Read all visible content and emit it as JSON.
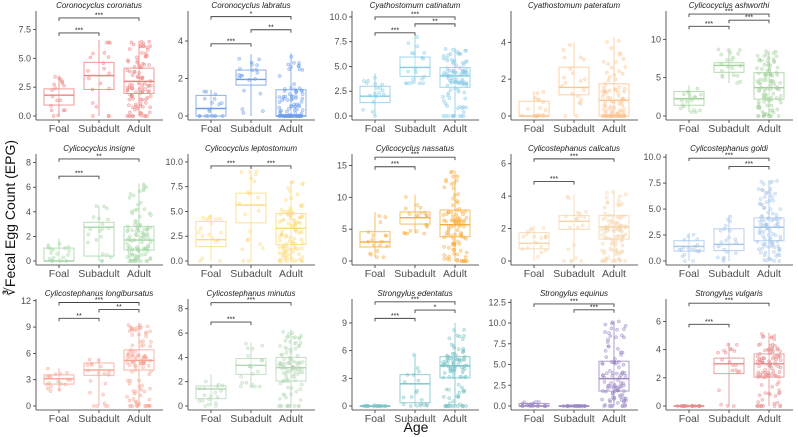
{
  "chart_data": {
    "type": "boxplot",
    "xlabel": "Age",
    "ylabel": "∛Fecal Egg Count (EPG)",
    "categories": [
      "Foal",
      "Subadult",
      "Adult"
    ],
    "stat_fields": [
      "whisker_low",
      "q1",
      "median",
      "q3",
      "whisker_high"
    ],
    "panels": [
      {
        "title": "Coronocyclus coronatus",
        "color": "#f08080",
        "ymax": 9.1,
        "ticks": [
          "0.0",
          "2.5",
          "5.0",
          "7.5"
        ],
        "stats": [
          [
            0,
            0.95,
            1.8,
            2.35,
            3.5
          ],
          [
            0,
            2.3,
            3.5,
            4.65,
            6.6
          ],
          [
            0,
            1.95,
            3.0,
            4.15,
            6.5
          ]
        ],
        "brackets": [
          {
            "from": 0,
            "to": 1,
            "y": 7.2,
            "label": "***"
          },
          {
            "from": 0,
            "to": 2,
            "y": 8.5,
            "label": "***"
          }
        ]
      },
      {
        "title": "Coronocyclus labratus",
        "color": "#6c9de8",
        "ymax": 5.6,
        "ticks": [
          "0",
          "2",
          "4"
        ],
        "stats": [
          [
            0,
            0,
            0.4,
            1.1,
            1.4
          ],
          [
            0,
            1.65,
            1.95,
            2.45,
            3.3
          ],
          [
            0,
            0,
            0,
            1.4,
            3.35
          ]
        ],
        "brackets": [
          {
            "from": 0,
            "to": 1,
            "y": 3.85,
            "label": "***"
          },
          {
            "from": 1,
            "to": 2,
            "y": 4.6,
            "label": "**"
          },
          {
            "from": 0,
            "to": 2,
            "y": 5.3,
            "label": "*"
          }
        ]
      },
      {
        "title": "Cyathostomum catinatum",
        "color": "#86cbe6",
        "ymax": 10.6,
        "ticks": [
          "0.0",
          "2.5",
          "5.0",
          "7.5",
          "10.0"
        ],
        "stats": [
          [
            0,
            1.35,
            2.0,
            3.0,
            4.3
          ],
          [
            3.3,
            4.0,
            4.9,
            5.95,
            8.0
          ],
          [
            0,
            2.9,
            4.05,
            4.9,
            6.9
          ]
        ],
        "brackets": [
          {
            "from": 0,
            "to": 1,
            "y": 8.4,
            "label": "***"
          },
          {
            "from": 1,
            "to": 2,
            "y": 9.3,
            "label": "**"
          },
          {
            "from": 0,
            "to": 2,
            "y": 10.0,
            "label": "***"
          }
        ]
      },
      {
        "title": "Cyathostomum pateratum",
        "color": "#fdc490",
        "ymax": 5.7,
        "ticks": [
          "0",
          "2",
          "4"
        ],
        "stats": [
          [
            0,
            0,
            0,
            0.8,
            1.35
          ],
          [
            0,
            1.15,
            1.55,
            2.65,
            4.0
          ],
          [
            0,
            0,
            0.85,
            1.75,
            4.25
          ]
        ],
        "brackets": []
      },
      {
        "title": "Cylicocyclus ashworthi",
        "color": "#a3d19c",
        "ymax": 13.7,
        "ticks": [
          "0",
          "5",
          "10"
        ],
        "stats": [
          [
            0.5,
            1.4,
            2.25,
            3.2,
            4.0
          ],
          [
            4.3,
            5.7,
            6.6,
            6.95,
            8.7
          ],
          [
            0,
            2.2,
            3.7,
            5.65,
            8.5
          ]
        ],
        "brackets": [
          {
            "from": 0,
            "to": 1,
            "y": 11.7,
            "label": "***"
          },
          {
            "from": 1,
            "to": 2,
            "y": 12.5,
            "label": "***"
          },
          {
            "from": 0,
            "to": 2,
            "y": 13.3,
            "label": "***"
          }
        ]
      },
      {
        "title": "Cylicocyclus insigne",
        "color": "#a5d6a5",
        "ymax": 8.7,
        "ticks": [
          "0",
          "2",
          "4",
          "6",
          "8"
        ],
        "stats": [
          [
            0,
            0,
            0,
            1.05,
            1.8
          ],
          [
            0,
            0.4,
            2.75,
            3.15,
            4.5
          ],
          [
            0,
            0.9,
            1.7,
            2.8,
            6.3
          ]
        ],
        "brackets": [
          {
            "from": 0,
            "to": 1,
            "y": 6.9,
            "label": "***"
          },
          {
            "from": 0,
            "to": 2,
            "y": 8.3,
            "label": "**"
          }
        ]
      },
      {
        "title": "Cylicocyclus leptostomum",
        "color": "#fbd97a",
        "ymax": 10.8,
        "ticks": [
          "0.0",
          "2.5",
          "5.0",
          "7.5",
          "10.0"
        ],
        "stats": [
          [
            0,
            1.45,
            2.15,
            4.0,
            4.7
          ],
          [
            0,
            3.85,
            5.65,
            6.85,
            9.1
          ],
          [
            0,
            1.65,
            3.3,
            4.8,
            8.1
          ]
        ],
        "brackets": [
          {
            "from": 0,
            "to": 1,
            "y": 9.6,
            "label": "***"
          },
          {
            "from": 1,
            "to": 2,
            "y": 9.6,
            "label": "***"
          }
        ]
      },
      {
        "title": "Cylicocyclus nassatus",
        "color": "#f5ad3c",
        "ymax": 16.8,
        "ticks": [
          "0",
          "5",
          "10",
          "15"
        ],
        "stats": [
          [
            0.6,
            2.2,
            3.0,
            4.6,
            7.7
          ],
          [
            4.3,
            5.8,
            6.8,
            7.7,
            10.4
          ],
          [
            0,
            3.8,
            5.7,
            8.0,
            14.2
          ]
        ],
        "brackets": [
          {
            "from": 0,
            "to": 1,
            "y": 14.8,
            "label": "***"
          },
          {
            "from": 0,
            "to": 2,
            "y": 16.3,
            "label": "***"
          }
        ]
      },
      {
        "title": "Cylicostephanus calicatus",
        "color": "#f6d3a8",
        "ymax": 6.6,
        "ticks": [
          "0",
          "2",
          "4",
          "6"
        ],
        "stats": [
          [
            0,
            0.75,
            1.1,
            1.75,
            2.2
          ],
          [
            0,
            1.95,
            2.45,
            2.8,
            4.1
          ],
          [
            0,
            1.35,
            2.1,
            2.8,
            4.3
          ]
        ],
        "brackets": [
          {
            "from": 0,
            "to": 1,
            "y": 4.9,
            "label": "***"
          },
          {
            "from": 0,
            "to": 2,
            "y": 6.3,
            "label": "***"
          }
        ]
      },
      {
        "title": "Cylicostephanus goldi",
        "color": "#a6c6ea",
        "ymax": 10.3,
        "ticks": [
          "0.0",
          "2.5",
          "5.0",
          "7.5",
          "10.0"
        ],
        "stats": [
          [
            0,
            0.95,
            1.4,
            1.95,
            2.7
          ],
          [
            0,
            1.0,
            1.6,
            3.1,
            4.4
          ],
          [
            0,
            1.95,
            3.25,
            4.15,
            7.8
          ]
        ],
        "brackets": [
          {
            "from": 1,
            "to": 2,
            "y": 9.1,
            "label": "***"
          },
          {
            "from": 0,
            "to": 2,
            "y": 9.9,
            "label": "***"
          }
        ]
      },
      {
        "title": "Cylicostephanus longibursatus",
        "color": "#f7a392",
        "ymax": 12.2,
        "ticks": [
          "0",
          "3",
          "6",
          "9",
          "12"
        ],
        "stats": [
          [
            1.7,
            2.5,
            3.1,
            3.55,
            4.3
          ],
          [
            0,
            3.5,
            4.1,
            4.9,
            5.5
          ],
          [
            0,
            4.1,
            5.2,
            6.4,
            9.5
          ]
        ],
        "brackets": [
          {
            "from": 0,
            "to": 1,
            "y": 10.0,
            "label": "**"
          },
          {
            "from": 1,
            "to": 2,
            "y": 11.0,
            "label": "**"
          },
          {
            "from": 0,
            "to": 2,
            "y": 11.8,
            "label": "***"
          }
        ]
      },
      {
        "title": "Cylicostephanus minutus",
        "color": "#b5d6b5",
        "ymax": 8.8,
        "ticks": [
          "0",
          "2",
          "4",
          "6",
          "8"
        ],
        "stats": [
          [
            0,
            0.6,
            1.4,
            1.65,
            2.6
          ],
          [
            1.6,
            2.6,
            3.35,
            3.9,
            5.2
          ],
          [
            0,
            2.05,
            3.15,
            4.0,
            6.3
          ]
        ],
        "brackets": [
          {
            "from": 0,
            "to": 1,
            "y": 6.9,
            "label": "***"
          },
          {
            "from": 0,
            "to": 2,
            "y": 8.5,
            "label": "***"
          }
        ]
      },
      {
        "title": "Strongylus edentatus",
        "color": "#78c2c6",
        "ymax": 11.6,
        "ticks": [
          "0",
          "3",
          "6",
          "9"
        ],
        "stats": [
          [
            0,
            0,
            0,
            0,
            0.3
          ],
          [
            0,
            0.35,
            2.4,
            3.4,
            5.6
          ],
          [
            0,
            3.05,
            4.35,
            5.35,
            9.0
          ]
        ],
        "brackets": [
          {
            "from": 0,
            "to": 1,
            "y": 9.5,
            "label": "***"
          },
          {
            "from": 1,
            "to": 2,
            "y": 10.4,
            "label": "*"
          },
          {
            "from": 0,
            "to": 2,
            "y": 11.3,
            "label": "***"
          }
        ]
      },
      {
        "title": "Strongylus equinus",
        "color": "#9a84c4",
        "ymax": 12.9,
        "ticks": [
          "0.0",
          "2.5",
          "5.0",
          "7.5",
          "10.0",
          "12.5"
        ],
        "stats": [
          [
            0,
            0,
            0,
            0.3,
            0.5
          ],
          [
            0,
            0,
            0,
            0,
            0
          ],
          [
            0,
            1.8,
            3.3,
            5.4,
            10.2
          ]
        ],
        "brackets": [
          {
            "from": 1,
            "to": 2,
            "y": 11.6,
            "label": "***"
          },
          {
            "from": 0,
            "to": 2,
            "y": 12.3,
            "label": "***"
          }
        ]
      },
      {
        "title": "Strongylus vulgaris",
        "color": "#e48a89",
        "ymax": 7.6,
        "ticks": [
          "0",
          "2",
          "4",
          "6"
        ],
        "stats": [
          [
            0,
            0,
            0,
            0,
            0
          ],
          [
            0,
            2.3,
            3.0,
            3.4,
            4.5
          ],
          [
            0,
            2.05,
            3.0,
            3.7,
            5.2
          ]
        ],
        "brackets": [
          {
            "from": 0,
            "to": 1,
            "y": 5.8,
            "label": "***"
          },
          {
            "from": 0,
            "to": 2,
            "y": 7.3,
            "label": "***"
          }
        ]
      }
    ]
  }
}
